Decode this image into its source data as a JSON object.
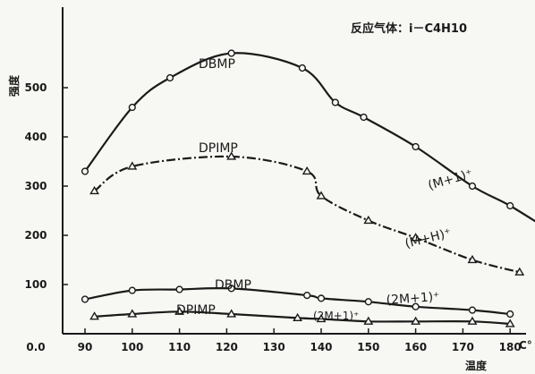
{
  "chart_data": {
    "type": "line",
    "annotation": "反应气体：i－C4H10",
    "ylabel": "强度",
    "xlabel": "温度",
    "x_unit": "C°",
    "xlim": [
      80,
      185
    ],
    "ylim": [
      0,
      620
    ],
    "x_ticks": [
      "0.0",
      "90",
      "100",
      "110",
      "120",
      "130",
      "140",
      "150",
      "160",
      "170",
      "180"
    ],
    "y_ticks": [
      {
        "label": "100",
        "value": 100
      },
      {
        "label": "200",
        "value": 200
      },
      {
        "label": "300",
        "value": 300
      },
      {
        "label": "400",
        "value": 400
      },
      {
        "label": "500",
        "value": 500
      }
    ],
    "series": [
      {
        "name": "DBMP",
        "ion": "(M+1)⁺",
        "marker": "circle",
        "x": [
          90,
          100,
          108,
          121,
          136,
          143,
          149,
          160,
          172,
          180,
          190
        ],
        "y": [
          330,
          460,
          520,
          570,
          540,
          470,
          440,
          380,
          300,
          260,
          200
        ]
      },
      {
        "name": "DPIMP",
        "ion": "(M+H)⁺",
        "marker": "triangle",
        "x": [
          92,
          100,
          121,
          137,
          140,
          150,
          160,
          172,
          182
        ],
        "y": [
          290,
          340,
          360,
          330,
          280,
          230,
          195,
          150,
          125
        ]
      },
      {
        "name": "DBMP",
        "ion": "(2M+1)⁺",
        "marker": "circle",
        "x": [
          90,
          100,
          110,
          121,
          137,
          140,
          150,
          160,
          172,
          180
        ],
        "y": [
          70,
          88,
          90,
          92,
          78,
          72,
          65,
          55,
          48,
          40
        ]
      },
      {
        "name": "DPIMP",
        "ion": "(2M+1)⁺",
        "marker": "triangle",
        "x": [
          92,
          100,
          110,
          121,
          135,
          140,
          150,
          160,
          172,
          180
        ],
        "y": [
          35,
          40,
          45,
          40,
          32,
          30,
          25,
          25,
          25,
          20
        ]
      }
    ]
  }
}
